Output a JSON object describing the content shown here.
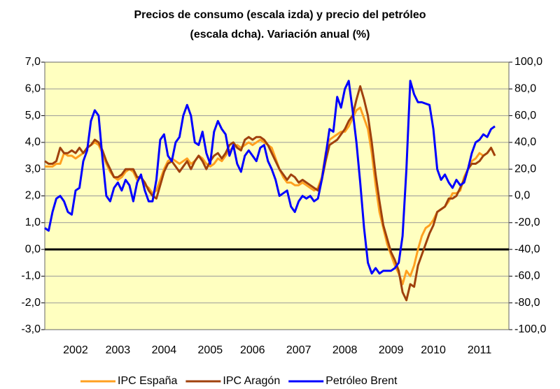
{
  "chart_data": {
    "type": "line",
    "title": [
      "Precios de consumo (escala izda)  y precio del petróleo",
      "(escala dcha).  Variación anual (%)"
    ],
    "categories": [
      null,
      null,
      null,
      null,
      null,
      null,
      null,
      null,
      "2002",
      null,
      null,
      null,
      null,
      null,
      null,
      null,
      null,
      null,
      null,
      "2003",
      null,
      null,
      null,
      null,
      null,
      null,
      null,
      null,
      null,
      null,
      null,
      "2004",
      null,
      null,
      null,
      null,
      null,
      null,
      null,
      null,
      null,
      null,
      null,
      "2005",
      null,
      null,
      null,
      null,
      null,
      null,
      null,
      null,
      null,
      null,
      "2006",
      null,
      null,
      null,
      null,
      null,
      null,
      null,
      null,
      null,
      null,
      null,
      "2007",
      null,
      null,
      null,
      null,
      null,
      null,
      null,
      null,
      null,
      null,
      null,
      "2008",
      null,
      null,
      null,
      null,
      null,
      null,
      null,
      null,
      null,
      null,
      null,
      "2009",
      null,
      null,
      null,
      null,
      null,
      null,
      null,
      null,
      null,
      null,
      "2010",
      null,
      null,
      null,
      null,
      null,
      null,
      null,
      null,
      null,
      null,
      null,
      "2011",
      null,
      null,
      null,
      null
    ],
    "series": [
      {
        "name": "IPC España",
        "color": "#ffa020",
        "axis": "y",
        "values": [
          3.1,
          3.1,
          3.1,
          3.2,
          3.2,
          3.6,
          3.5,
          3.5,
          3.4,
          3.5,
          3.6,
          3.8,
          3.9,
          4.0,
          3.9,
          3.6,
          3.2,
          2.9,
          2.7,
          2.6,
          2.7,
          2.9,
          3.0,
          2.9,
          2.6,
          2.7,
          2.4,
          2.3,
          2.1,
          2.2,
          2.6,
          3.0,
          3.3,
          3.4,
          3.3,
          3.2,
          3.3,
          3.4,
          3.2,
          3.3,
          3.5,
          3.4,
          3.2,
          3.1,
          3.2,
          3.4,
          3.3,
          3.5,
          3.7,
          3.8,
          3.9,
          3.8,
          3.9,
          4.0,
          3.9,
          4.0,
          4.1,
          4.0,
          3.9,
          3.8,
          3.4,
          3.0,
          2.7,
          2.5,
          2.5,
          2.4,
          2.4,
          2.5,
          2.4,
          2.3,
          2.2,
          2.3,
          2.7,
          3.6,
          4.1,
          4.2,
          4.3,
          4.4,
          4.4,
          4.6,
          4.9,
          5.2,
          5.3,
          4.9,
          4.5,
          3.6,
          2.4,
          1.4,
          0.8,
          0.2,
          -0.2,
          -0.6,
          -0.9,
          -1.3,
          -0.8,
          -1.0,
          -0.6,
          0.0,
          0.5,
          0.8,
          0.9,
          1.1,
          1.4,
          1.5,
          1.6,
          1.8,
          2.1,
          2.1,
          2.2,
          2.7,
          3.0,
          3.3,
          3.4,
          3.6,
          3.5,
          3.6,
          3.8,
          3.5
        ]
      },
      {
        "name": "IPC Aragón",
        "color": "#a0410d",
        "axis": "y",
        "values": [
          3.3,
          3.2,
          3.2,
          3.3,
          3.8,
          3.6,
          3.6,
          3.7,
          3.6,
          3.8,
          3.6,
          3.8,
          3.9,
          4.1,
          4.0,
          3.7,
          3.3,
          3.0,
          2.7,
          2.7,
          2.8,
          3.0,
          3.0,
          3.0,
          2.7,
          2.7,
          2.5,
          2.2,
          2.0,
          1.9,
          2.4,
          2.9,
          3.2,
          3.3,
          3.1,
          2.9,
          3.1,
          3.3,
          3.0,
          3.3,
          3.5,
          3.3,
          3.0,
          3.3,
          3.5,
          3.6,
          3.4,
          3.6,
          3.9,
          4.0,
          3.8,
          3.7,
          4.1,
          4.2,
          4.1,
          4.2,
          4.2,
          4.1,
          3.9,
          3.6,
          3.3,
          3.0,
          2.8,
          2.6,
          2.8,
          2.7,
          2.5,
          2.6,
          2.5,
          2.4,
          2.3,
          2.2,
          2.6,
          3.3,
          3.9,
          4.0,
          4.1,
          4.3,
          4.5,
          4.8,
          5.0,
          5.6,
          6.1,
          5.6,
          5.0,
          4.0,
          2.8,
          1.8,
          0.9,
          0.4,
          -0.1,
          -0.4,
          -0.8,
          -1.6,
          -1.9,
          -1.3,
          -1.4,
          -0.6,
          -0.2,
          0.2,
          0.6,
          0.9,
          1.4,
          1.5,
          1.6,
          1.9,
          1.9,
          2.0,
          2.3,
          2.6,
          3.0,
          3.2,
          3.2,
          3.3,
          3.5,
          3.6,
          3.8,
          3.5
        ]
      },
      {
        "name": "Petróleo Brent",
        "color": "#0000ff",
        "axis": "y2",
        "values": [
          -24,
          -26,
          -12,
          -2,
          0,
          -4,
          -12,
          -14,
          4,
          6,
          26,
          34,
          56,
          64,
          60,
          28,
          0,
          -4,
          6,
          10,
          4,
          12,
          8,
          -4,
          10,
          16,
          4,
          -4,
          -4,
          12,
          42,
          46,
          30,
          26,
          40,
          44,
          60,
          68,
          60,
          40,
          38,
          48,
          32,
          24,
          48,
          56,
          50,
          46,
          30,
          38,
          24,
          18,
          30,
          34,
          30,
          26,
          36,
          38,
          26,
          20,
          12,
          0,
          2,
          4,
          -8,
          -12,
          -4,
          0,
          -2,
          0,
          -4,
          -2,
          12,
          30,
          50,
          48,
          74,
          66,
          80,
          86,
          64,
          40,
          10,
          -24,
          -50,
          -58,
          -54,
          -58,
          -56,
          -56,
          -56,
          -54,
          -50,
          -30,
          20,
          86,
          76,
          70,
          70,
          69,
          68,
          50,
          20,
          12,
          16,
          10,
          6,
          12,
          8,
          10,
          20,
          32,
          40,
          42,
          46,
          44,
          50,
          52
        ]
      }
    ],
    "ylim": [
      -3,
      7
    ],
    "yticks": [
      {
        "value": -3,
        "label": "-3,0"
      },
      {
        "value": -2,
        "label": "-2,0"
      },
      {
        "value": -1,
        "label": "-1,0"
      },
      {
        "value": 0,
        "label": "0,0"
      },
      {
        "value": 1,
        "label": "1,0"
      },
      {
        "value": 2,
        "label": "2,0"
      },
      {
        "value": 3,
        "label": "3,0"
      },
      {
        "value": 4,
        "label": "4,0"
      },
      {
        "value": 5,
        "label": "5,0"
      },
      {
        "value": 6,
        "label": "6,0"
      },
      {
        "value": 7,
        "label": "7,0"
      }
    ],
    "y2lim": [
      -100,
      100
    ],
    "y2ticks": [
      {
        "value": -100,
        "label": "-100,0"
      },
      {
        "value": -80,
        "label": "-80,0"
      },
      {
        "value": -60,
        "label": "-60,0"
      },
      {
        "value": -40,
        "label": "-40,0"
      },
      {
        "value": -20,
        "label": "-20,0"
      },
      {
        "value": 0,
        "label": "0,0"
      },
      {
        "value": 20,
        "label": "20,0"
      },
      {
        "value": 40,
        "label": "40,0"
      },
      {
        "value": 60,
        "label": "60,0"
      },
      {
        "value": 80,
        "label": "80,0"
      },
      {
        "value": 100,
        "label": "100,0"
      }
    ],
    "grid": true,
    "legend": "bottom",
    "background": "#ffffc0"
  }
}
